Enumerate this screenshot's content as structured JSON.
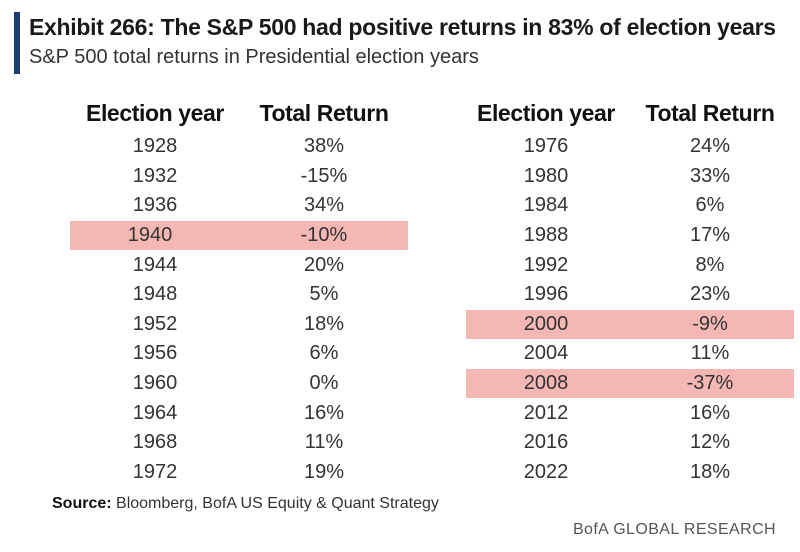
{
  "title": "Exhibit 266: The S&P 500 had positive returns in 83% of election years",
  "subtitle": "S&P 500 total returns in Presidential election years",
  "source_label": "Source:",
  "source_text": "Bloomberg, BofA US Equity & Quant Strategy",
  "brand": "BofA GLOBAL RESEARCH",
  "colors": {
    "accent": "#1b3a78",
    "highlight": "#f4b7b3"
  },
  "chart_data": {
    "type": "table",
    "title": "Exhibit 266: The S&P 500 had positive returns in 83% of election years",
    "subtitle": "S&P 500 total returns in Presidential election years",
    "columns": [
      "Election year",
      "Total Return"
    ],
    "tables": [
      {
        "rows": [
          {
            "year": "1928",
            "ret": "38%",
            "value": 38,
            "highlight": false
          },
          {
            "year": "1932",
            "ret": "-15%",
            "value": -15,
            "highlight": false
          },
          {
            "year": "1936",
            "ret": "34%",
            "value": 34,
            "highlight": false
          },
          {
            "year": "1940",
            "ret": "-10%",
            "value": -10,
            "highlight": true
          },
          {
            "year": "1944",
            "ret": "20%",
            "value": 20,
            "highlight": false
          },
          {
            "year": "1948",
            "ret": "5%",
            "value": 5,
            "highlight": false
          },
          {
            "year": "1952",
            "ret": "18%",
            "value": 18,
            "highlight": false
          },
          {
            "year": "1956",
            "ret": "6%",
            "value": 6,
            "highlight": false
          },
          {
            "year": "1960",
            "ret": "0%",
            "value": 0,
            "highlight": false
          },
          {
            "year": "1964",
            "ret": "16%",
            "value": 16,
            "highlight": false
          },
          {
            "year": "1968",
            "ret": "11%",
            "value": 11,
            "highlight": false
          },
          {
            "year": "1972",
            "ret": "19%",
            "value": 19,
            "highlight": false
          }
        ]
      },
      {
        "rows": [
          {
            "year": "1976",
            "ret": "24%",
            "value": 24,
            "highlight": false
          },
          {
            "year": "1980",
            "ret": "33%",
            "value": 33,
            "highlight": false
          },
          {
            "year": "1984",
            "ret": "6%",
            "value": 6,
            "highlight": false
          },
          {
            "year": "1988",
            "ret": "17%",
            "value": 17,
            "highlight": false
          },
          {
            "year": "1992",
            "ret": "8%",
            "value": 8,
            "highlight": false
          },
          {
            "year": "1996",
            "ret": "23%",
            "value": 23,
            "highlight": false
          },
          {
            "year": "2000",
            "ret": "-9%",
            "value": -9,
            "highlight": true
          },
          {
            "year": "2004",
            "ret": "11%",
            "value": 11,
            "highlight": false
          },
          {
            "year": "2008",
            "ret": "-37%",
            "value": -37,
            "highlight": true
          },
          {
            "year": "2012",
            "ret": "16%",
            "value": 16,
            "highlight": false
          },
          {
            "year": "2016",
            "ret": "12%",
            "value": 12,
            "highlight": false
          },
          {
            "year": "2022",
            "ret": "18%",
            "value": 18,
            "highlight": false
          }
        ]
      }
    ]
  }
}
